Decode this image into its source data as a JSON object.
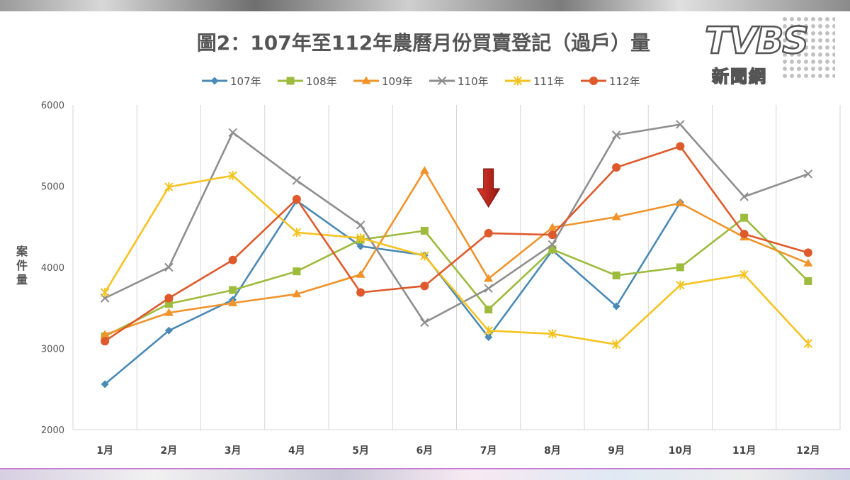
{
  "logo": {
    "brand": "TVBS",
    "sub": "新聞網"
  },
  "chart_data": {
    "type": "line",
    "title": "圖2：107年至112年農曆月份買賣登記（過戶）量",
    "ylabel": "案件量",
    "xlabel": "",
    "categories": [
      "1月",
      "2月",
      "3月",
      "4月",
      "5月",
      "6月",
      "7月",
      "8月",
      "9月",
      "10月",
      "11月",
      "12月"
    ],
    "ylim": [
      2000,
      6000
    ],
    "yticks": [
      2000,
      3000,
      4000,
      5000,
      6000
    ],
    "grid": "vertical",
    "legend_position": "top",
    "series": [
      {
        "name": "107年",
        "color": "#4a8ab5",
        "marker": "diamond",
        "values": [
          2560,
          3220,
          3600,
          4820,
          4260,
          4150,
          3140,
          4210,
          3520,
          4800,
          null,
          null
        ]
      },
      {
        "name": "108年",
        "color": "#9dbb3c",
        "marker": "square",
        "values": [
          3150,
          3550,
          3720,
          3950,
          4340,
          4450,
          3480,
          4220,
          3900,
          4000,
          4610,
          3830
        ]
      },
      {
        "name": "109年",
        "color": "#f0932a",
        "marker": "triangle",
        "values": [
          3170,
          3440,
          3560,
          3670,
          3910,
          5190,
          3860,
          4490,
          4620,
          4790,
          4370,
          4050
        ]
      },
      {
        "name": "110年",
        "color": "#8e8e8e",
        "marker": "x",
        "values": [
          3620,
          4000,
          5660,
          5070,
          4520,
          3320,
          3740,
          4280,
          5630,
          5760,
          4870,
          5150
        ]
      },
      {
        "name": "111年",
        "color": "#f5c321",
        "marker": "star",
        "values": [
          3690,
          4990,
          5130,
          4430,
          4360,
          4140,
          3220,
          3180,
          3050,
          3780,
          3910,
          3060
        ]
      },
      {
        "name": "112年",
        "color": "#de5a2c",
        "marker": "circle",
        "values": [
          3090,
          3620,
          4090,
          4840,
          3690,
          3770,
          4420,
          4400,
          5230,
          5490,
          4410,
          4180
        ]
      }
    ],
    "annotation": {
      "type": "arrow",
      "direction": "down",
      "category": "7月",
      "color": "#c0251c"
    }
  }
}
